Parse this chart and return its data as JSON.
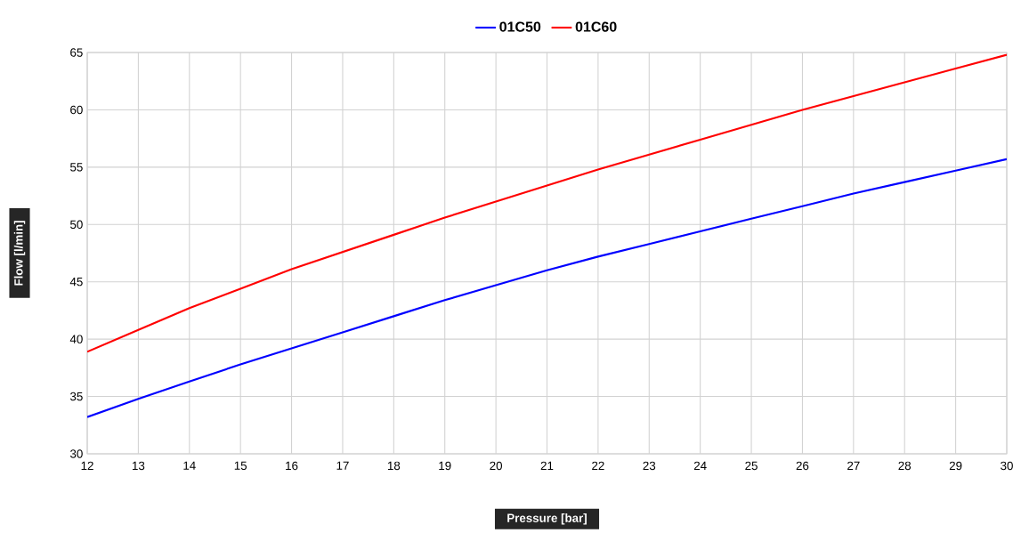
{
  "chart_data": {
    "type": "line",
    "xlabel": "Pressure [bar]",
    "ylabel": "Flow [l/min]",
    "x": [
      12,
      13,
      14,
      15,
      16,
      17,
      18,
      19,
      20,
      21,
      22,
      23,
      24,
      25,
      26,
      27,
      28,
      29,
      30
    ],
    "series": [
      {
        "name": "01C50",
        "color": "#0000ff",
        "values": [
          33.2,
          34.8,
          36.3,
          37.8,
          39.2,
          40.6,
          42.0,
          43.4,
          44.7,
          46.0,
          47.2,
          48.3,
          49.4,
          50.5,
          51.6,
          52.7,
          53.7,
          54.7,
          55.7
        ]
      },
      {
        "name": "01C60",
        "color": "#ff0000",
        "values": [
          38.9,
          40.8,
          42.7,
          44.4,
          46.1,
          47.6,
          49.1,
          50.6,
          52.0,
          53.4,
          54.8,
          56.1,
          57.4,
          58.7,
          60.0,
          61.2,
          62.4,
          63.6,
          64.8
        ]
      }
    ],
    "xlim": [
      12,
      30
    ],
    "xticks": [
      12,
      13,
      14,
      15,
      16,
      17,
      18,
      19,
      20,
      21,
      22,
      23,
      24,
      25,
      26,
      27,
      28,
      29,
      30
    ],
    "ylim": [
      30,
      65
    ],
    "yticks": [
      30,
      35,
      40,
      45,
      50,
      55,
      60,
      65
    ],
    "grid": true,
    "legend": "top"
  }
}
